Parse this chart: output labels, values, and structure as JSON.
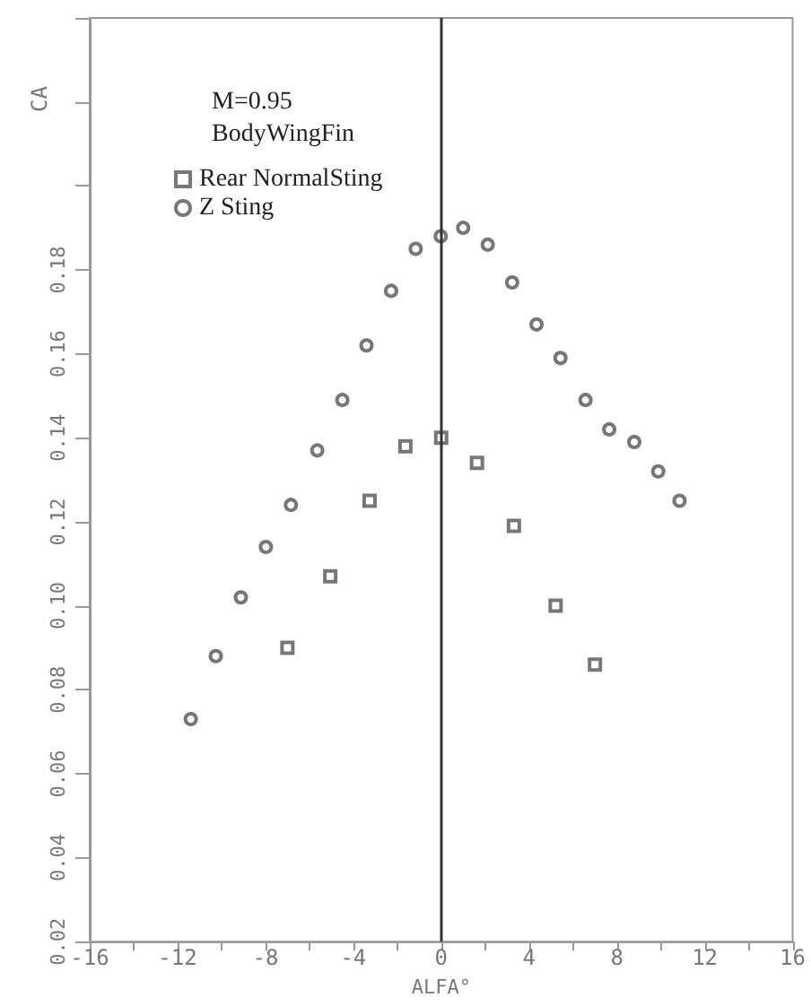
{
  "chart_data": {
    "type": "scatter",
    "xlabel": "ALFA°",
    "ylabel": "CA",
    "annotations": [
      "M=0.95",
      "BodyWingFin"
    ],
    "xlim": [
      -16,
      16
    ],
    "xticks": [
      -16,
      {
        "value": -14,
        "label": null
      },
      -12,
      {
        "value": -10,
        "label": null
      },
      -8,
      {
        "value": -6,
        "label": null
      },
      -4,
      {
        "value": -2,
        "label": null
      },
      0,
      {
        "value": 2,
        "label": null
      },
      4,
      {
        "value": 6,
        "label": null
      },
      8,
      {
        "value": 10,
        "label": null
      },
      12,
      {
        "value": 14,
        "label": null
      },
      16
    ],
    "ylim": [
      0.02,
      0.24
    ],
    "yticks": [
      {
        "value": 0.02,
        "label": "0.02"
      },
      {
        "value": 0.04,
        "label": "0.04"
      },
      {
        "value": 0.06,
        "label": "0.06"
      },
      {
        "value": 0.08,
        "label": "0.08"
      },
      {
        "value": 0.1,
        "label": "0.10"
      },
      {
        "value": 0.12,
        "label": "0.12"
      },
      {
        "value": 0.14,
        "label": "0.14"
      },
      {
        "value": 0.16,
        "label": "0.16"
      },
      {
        "value": 0.18,
        "label": "0.18"
      },
      {
        "value": 0.2,
        "label": null
      },
      {
        "value": 0.22,
        "label": null
      },
      {
        "value": 0.24,
        "label": null
      }
    ],
    "grid": false,
    "legend": "top left",
    "ref_lines": [
      {
        "axis": "x",
        "value": 0,
        "color": "#333333"
      }
    ],
    "series": [
      {
        "name": "Rear NormalSting",
        "color": "#555555",
        "marker": "square",
        "x": [
          -7.0,
          -5.05,
          -3.26,
          -1.63,
          0,
          1.63,
          3.31,
          5.21,
          7.0
        ],
        "values": [
          0.09,
          0.107,
          0.125,
          0.138,
          0.14,
          0.134,
          0.119,
          0.1,
          0.086
        ]
      },
      {
        "name": "Z Sting",
        "color": "#555555",
        "marker": "circle",
        "x": [
          -11.4,
          -10.26,
          -9.12,
          -7.98,
          -6.84,
          -5.64,
          -4.5,
          -3.4,
          -2.28,
          -1.16,
          -0.02,
          1.0,
          2.12,
          3.23,
          4.34,
          5.43,
          6.57,
          7.65,
          8.79,
          9.88,
          10.85
        ],
        "values": [
          0.073,
          0.088,
          0.102,
          0.114,
          0.124,
          0.137,
          0.149,
          0.162,
          0.175,
          0.185,
          0.188,
          0.19,
          0.186,
          0.177,
          0.167,
          0.159,
          0.149,
          0.142,
          0.139,
          0.132,
          0.125
        ]
      }
    ]
  }
}
